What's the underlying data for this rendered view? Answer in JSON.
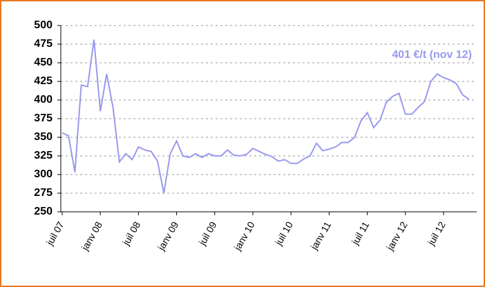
{
  "chart_data": {
    "type": "line",
    "annotation": "401 €/t  (nov 12)",
    "categories": [
      "juil 07",
      null,
      null,
      null,
      null,
      null,
      "janv 08",
      null,
      null,
      null,
      null,
      null,
      "juil 08",
      null,
      null,
      null,
      null,
      null,
      "janv 09",
      null,
      null,
      null,
      null,
      null,
      "juil 09",
      null,
      null,
      null,
      null,
      null,
      "janv 10",
      null,
      null,
      null,
      null,
      null,
      "juil 10",
      null,
      null,
      null,
      null,
      null,
      "janv 11",
      null,
      null,
      null,
      null,
      null,
      "juil 11",
      null,
      null,
      null,
      null,
      null,
      "janv 12",
      null,
      null,
      null,
      null,
      null,
      "juil 12",
      null,
      null,
      null,
      null
    ],
    "values": [
      356,
      352,
      303,
      420,
      418,
      481,
      385,
      435,
      390,
      317,
      328,
      320,
      337,
      333,
      331,
      318,
      275,
      328,
      345,
      325,
      323,
      328,
      323,
      328,
      325,
      325,
      333,
      326,
      325,
      327,
      335,
      331,
      327,
      324,
      318,
      320,
      315,
      315,
      321,
      325,
      342,
      332,
      334,
      337,
      343,
      343,
      350,
      372,
      383,
      363,
      373,
      397,
      405,
      409,
      381,
      381,
      390,
      398,
      425,
      435,
      430,
      427,
      422,
      407,
      401
    ],
    "color": "#9999ee",
    "ylim": [
      250,
      500
    ],
    "yticks": [
      250,
      275,
      300,
      325,
      350,
      375,
      400,
      425,
      450,
      475,
      500
    ],
    "grid": true
  }
}
